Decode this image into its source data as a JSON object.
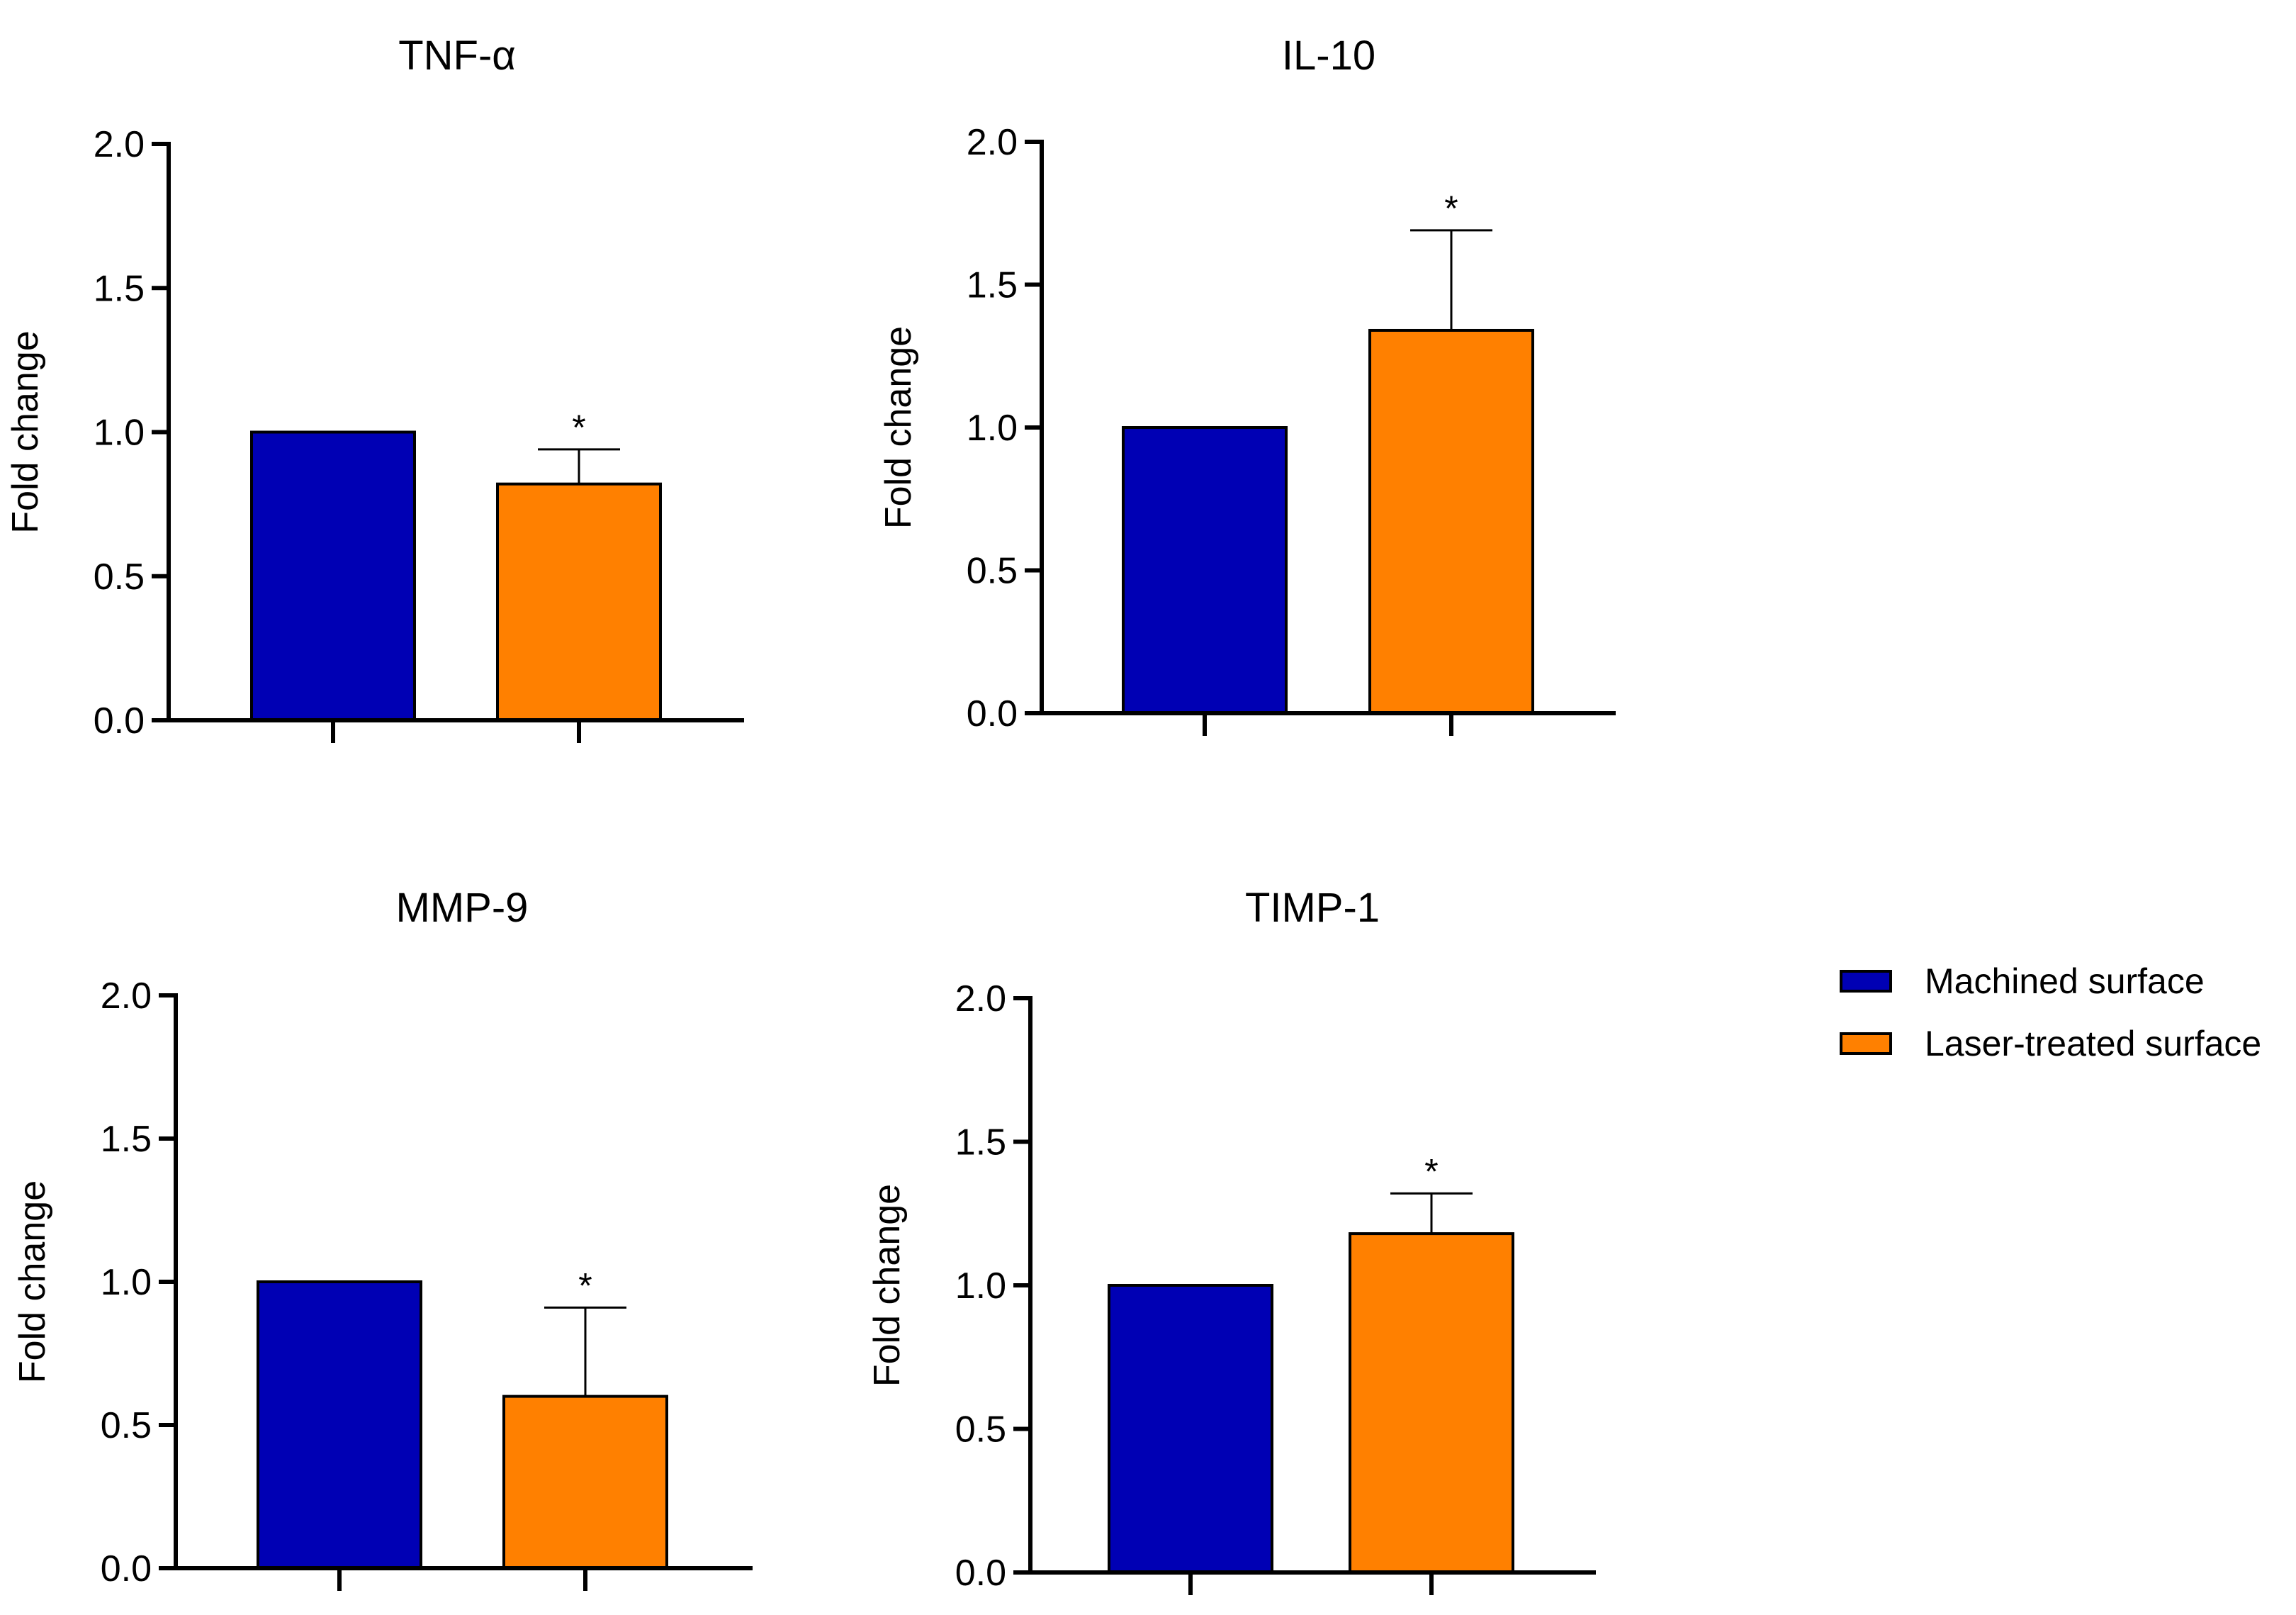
{
  "figure": {
    "legend": [
      {
        "name": "Machined surface",
        "color": "#0000b4"
      },
      {
        "name": "Laser-treated surface",
        "color": "#ff8000"
      }
    ]
  },
  "chart_data": [
    {
      "type": "bar",
      "title": "TNF-α",
      "xlabel": "",
      "ylabel": "Fold change",
      "ylim": [
        0,
        2.0
      ],
      "yticks": [
        "0.0",
        "0.5",
        "1.0",
        "1.5",
        "2.0"
      ],
      "categories": [
        "Machined surface",
        "Laser-treated surface"
      ],
      "values": [
        1.0,
        0.82
      ],
      "errors": [
        0,
        0.12
      ],
      "significance": [
        "",
        "*"
      ],
      "colors": [
        "#0000b4",
        "#ff8000"
      ]
    },
    {
      "type": "bar",
      "title": "IL-10",
      "xlabel": "",
      "ylabel": "Fold change",
      "ylim": [
        0,
        2.0
      ],
      "yticks": [
        "0.0",
        "0.5",
        "1.0",
        "1.5",
        "2.0"
      ],
      "categories": [
        "Machined surface",
        "Laser-treated surface"
      ],
      "values": [
        1.0,
        1.34
      ],
      "errors": [
        0,
        0.35
      ],
      "significance": [
        "",
        "*"
      ],
      "colors": [
        "#0000b4",
        "#ff8000"
      ]
    },
    {
      "type": "bar",
      "title": "MMP-9",
      "xlabel": "",
      "ylabel": "Fold change",
      "ylim": [
        0,
        2.0
      ],
      "yticks": [
        "0.0",
        "0.5",
        "1.0",
        "1.5",
        "2.0"
      ],
      "categories": [
        "Machined surface",
        "Laser-treated surface"
      ],
      "values": [
        1.0,
        0.6
      ],
      "errors": [
        0,
        0.31
      ],
      "significance": [
        "",
        "*"
      ],
      "colors": [
        "#0000b4",
        "#ff8000"
      ]
    },
    {
      "type": "bar",
      "title": "TIMP-1",
      "xlabel": "",
      "ylabel": "Fold change",
      "ylim": [
        0,
        2.0
      ],
      "yticks": [
        "0.0",
        "0.5",
        "1.0",
        "1.5",
        "2.0"
      ],
      "categories": [
        "Machined surface",
        "Laser-treated surface"
      ],
      "values": [
        1.0,
        1.18
      ],
      "errors": [
        0,
        0.14
      ],
      "significance": [
        "",
        "*"
      ],
      "colors": [
        "#0000b4",
        "#ff8000"
      ]
    }
  ]
}
